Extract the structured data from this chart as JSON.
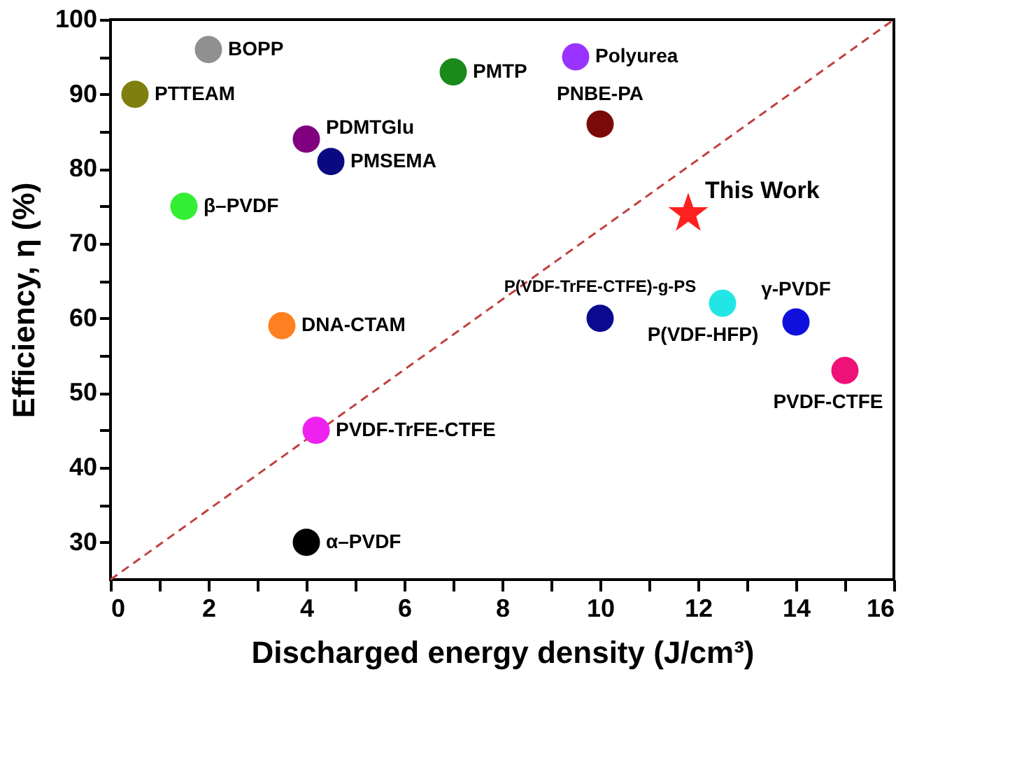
{
  "chart_data": {
    "type": "scatter",
    "xlabel": "Discharged energy density (J/cm³)",
    "ylabel": "Efficiency, η (%)",
    "xlim": [
      0,
      16
    ],
    "ylim": [
      25,
      100
    ],
    "xticks": [
      0,
      {
        "value": 1,
        "label": null
      },
      2,
      {
        "value": 3,
        "label": null
      },
      4,
      {
        "value": 5,
        "label": null
      },
      6,
      {
        "value": 7,
        "label": null
      },
      8,
      {
        "value": 9,
        "label": null
      },
      10,
      {
        "value": 11,
        "label": null
      },
      12,
      {
        "value": 13,
        "label": null
      },
      14,
      {
        "value": 15,
        "label": null
      },
      16
    ],
    "yticks": [
      30,
      {
        "value": 35,
        "label": null
      },
      40,
      {
        "value": 45,
        "label": null
      },
      50,
      {
        "value": 55,
        "label": null
      },
      60,
      {
        "value": 65,
        "label": null
      },
      70,
      {
        "value": 75,
        "label": null
      },
      80,
      {
        "value": 85,
        "label": null
      },
      90,
      {
        "value": 95,
        "label": null
      },
      100
    ],
    "grid": false,
    "marker": "circle",
    "series": [
      {
        "type": "line",
        "x": [
          0,
          16
        ],
        "values": [
          25,
          100
        ],
        "color": "#c04040",
        "line_style": "dashed",
        "marker": "none"
      },
      {
        "name": "BOPP",
        "color": "#909090",
        "x": [
          2
        ],
        "values": [
          96
        ]
      },
      {
        "name": "PTTEAM",
        "color": "#7f7f10",
        "x": [
          0.5
        ],
        "values": [
          90
        ]
      },
      {
        "name": "PMTP",
        "color": "#1a8a1a",
        "x": [
          7
        ],
        "values": [
          93
        ]
      },
      {
        "name": "Polyurea",
        "color": "#9933ff",
        "x": [
          9.5
        ],
        "values": [
          95
        ]
      },
      {
        "name": "PNBE-PA",
        "color": "#7a0a0a",
        "x": [
          10
        ],
        "values": [
          86
        ]
      },
      {
        "name": "PDMTGlu",
        "color": "#800080",
        "x": [
          4
        ],
        "values": [
          84
        ]
      },
      {
        "name": "PMSEMA",
        "color": "#0a0a80",
        "x": [
          4.5
        ],
        "values": [
          81
        ]
      },
      {
        "name": "β–PVDF",
        "color": "#33ee33",
        "x": [
          1.5
        ],
        "values": [
          75
        ]
      },
      {
        "name": "This Work",
        "color": "#ff2020",
        "x": [
          11.8
        ],
        "values": [
          74
        ],
        "marker": "star"
      },
      {
        "name": "P(VDF-TrFE-CTFE)-g-PS",
        "color": "#0a0a90",
        "x": [
          10
        ],
        "values": [
          60
        ]
      },
      {
        "name": "P(VDF-HFP)",
        "color": "#22e6e6",
        "x": [
          12.5
        ],
        "values": [
          62
        ]
      },
      {
        "name": "γ-PVDF",
        "color": "#1010dd",
        "x": [
          14
        ],
        "values": [
          59.5
        ]
      },
      {
        "name": "PVDF-CTFE",
        "color": "#ee1177",
        "x": [
          15
        ],
        "values": [
          53
        ]
      },
      {
        "name": "DNA-CTAM",
        "color": "#ff8020",
        "x": [
          3.5
        ],
        "values": [
          59
        ]
      },
      {
        "name": "PVDF-TrFE-CTFE",
        "color": "#ee22ee",
        "x": [
          4.2
        ],
        "values": [
          45
        ]
      },
      {
        "name": "α–PVDF",
        "color": "#000000",
        "x": [
          4
        ],
        "values": [
          30
        ]
      }
    ]
  }
}
